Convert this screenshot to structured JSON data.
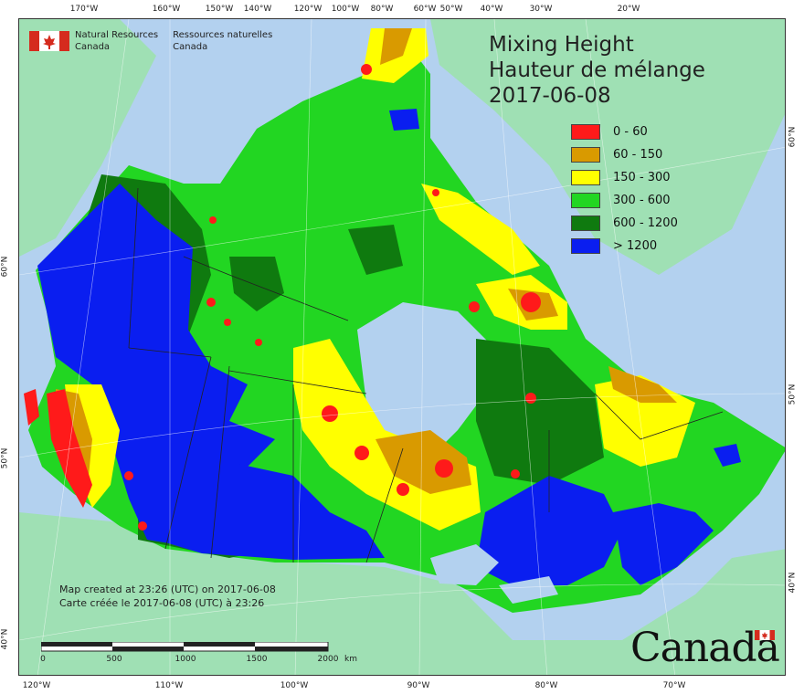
{
  "title": {
    "line1": "Mixing Height",
    "line2": "Hauteur de mélange",
    "line3": "2017-06-08"
  },
  "agency": {
    "en_line1": "Natural Resources",
    "en_line2": "Canada",
    "fr_line1": "Ressources naturelles",
    "fr_line2": "Canada",
    "flag_icon": "canada-flag-icon"
  },
  "legend": [
    {
      "label": "0 - 60",
      "color": "#ff1a1a"
    },
    {
      "label": "60 - 150",
      "color": "#d99a00"
    },
    {
      "label": "150 - 300",
      "color": "#ffff00"
    },
    {
      "label": "300 - 600",
      "color": "#22d622"
    },
    {
      "label": "600 - 1200",
      "color": "#0f7a0f"
    },
    {
      "label": "> 1200",
      "color": "#0a1ef0"
    }
  ],
  "caption": {
    "line1": "Map created at 23:26 (UTC) on 2017-06-08",
    "line2": "Carte créée le 2017-06-08 (UTC) à 23:26"
  },
  "scale": {
    "labels": [
      "0",
      "500",
      "1000",
      "1500",
      "2000"
    ],
    "unit": "km"
  },
  "wordmark": "Canada",
  "ticks": {
    "top": [
      "170°W",
      "160°W",
      "150°W",
      "140°W",
      "120°W",
      "100°W",
      "80°W",
      "60°W",
      "50°W",
      "40°W",
      "30°W",
      "20°W"
    ],
    "bottom": [
      "120°W",
      "110°W",
      "100°W",
      "90°W",
      "80°W",
      "70°W"
    ],
    "left": [
      "60°N",
      "50°N",
      "40°N"
    ],
    "right": [
      "60°N",
      "50°N",
      "40°N"
    ]
  },
  "colors": {
    "ocean": "#b3d1ef",
    "outside_land": "#9fe0b4",
    "border": "#222222"
  }
}
